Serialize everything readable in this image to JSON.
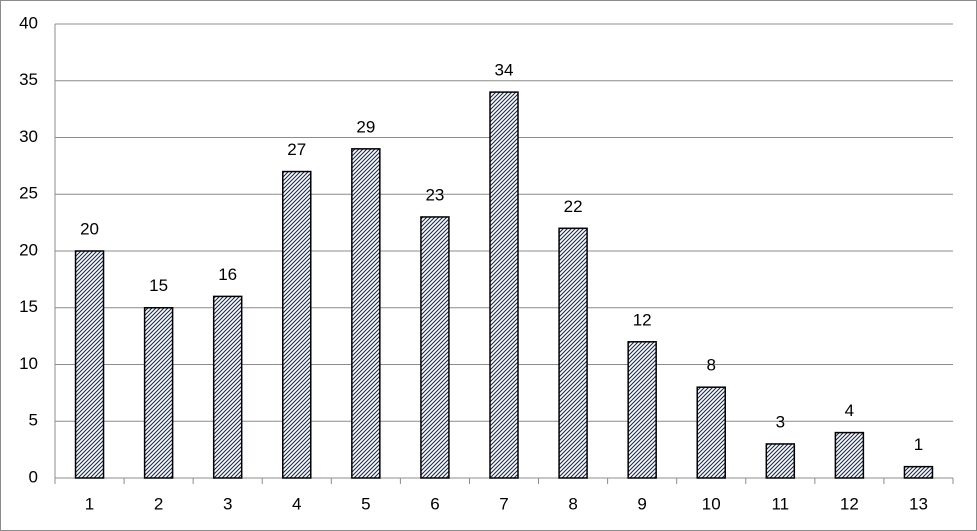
{
  "chart_data": {
    "type": "bar",
    "categories": [
      "1",
      "2",
      "3",
      "4",
      "5",
      "6",
      "7",
      "8",
      "9",
      "10",
      "11",
      "12",
      "13"
    ],
    "values": [
      20,
      15,
      16,
      27,
      29,
      23,
      34,
      22,
      12,
      8,
      3,
      4,
      1
    ],
    "ylim": [
      0,
      40
    ],
    "yticks": [
      0,
      5,
      10,
      15,
      20,
      25,
      30,
      35,
      40
    ],
    "grid": true
  }
}
